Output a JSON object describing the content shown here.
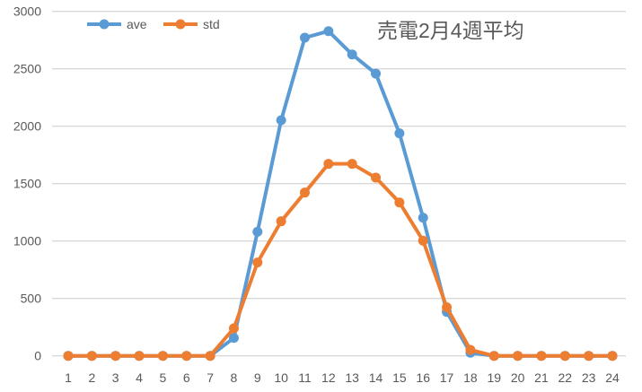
{
  "chart_data": {
    "type": "line",
    "title": "売電2月4週平均",
    "xlabel": "",
    "ylabel": "",
    "ylim": [
      0,
      3000
    ],
    "yticks": [
      0,
      500,
      1000,
      1500,
      2000,
      2500,
      3000
    ],
    "grid": true,
    "legend_position": "top-left",
    "x": [
      1,
      2,
      3,
      4,
      5,
      6,
      7,
      8,
      9,
      10,
      11,
      12,
      13,
      14,
      15,
      16,
      17,
      18,
      19,
      20,
      21,
      22,
      23,
      24
    ],
    "series": [
      {
        "name": "ave",
        "color": "#5B9BD5",
        "values": [
          0,
          0,
          0,
          0,
          0,
          0,
          0,
          156,
          1081,
          2052,
          2771,
          2828,
          2625,
          2458,
          1938,
          1203,
          383,
          27,
          0,
          0,
          0,
          0,
          0,
          0
        ]
      },
      {
        "name": "std",
        "color": "#ED7D31",
        "values": [
          0,
          0,
          0,
          0,
          0,
          0,
          0,
          240,
          813,
          1172,
          1422,
          1672,
          1672,
          1552,
          1336,
          1003,
          422,
          52,
          0,
          0,
          0,
          0,
          0,
          0
        ]
      }
    ]
  }
}
